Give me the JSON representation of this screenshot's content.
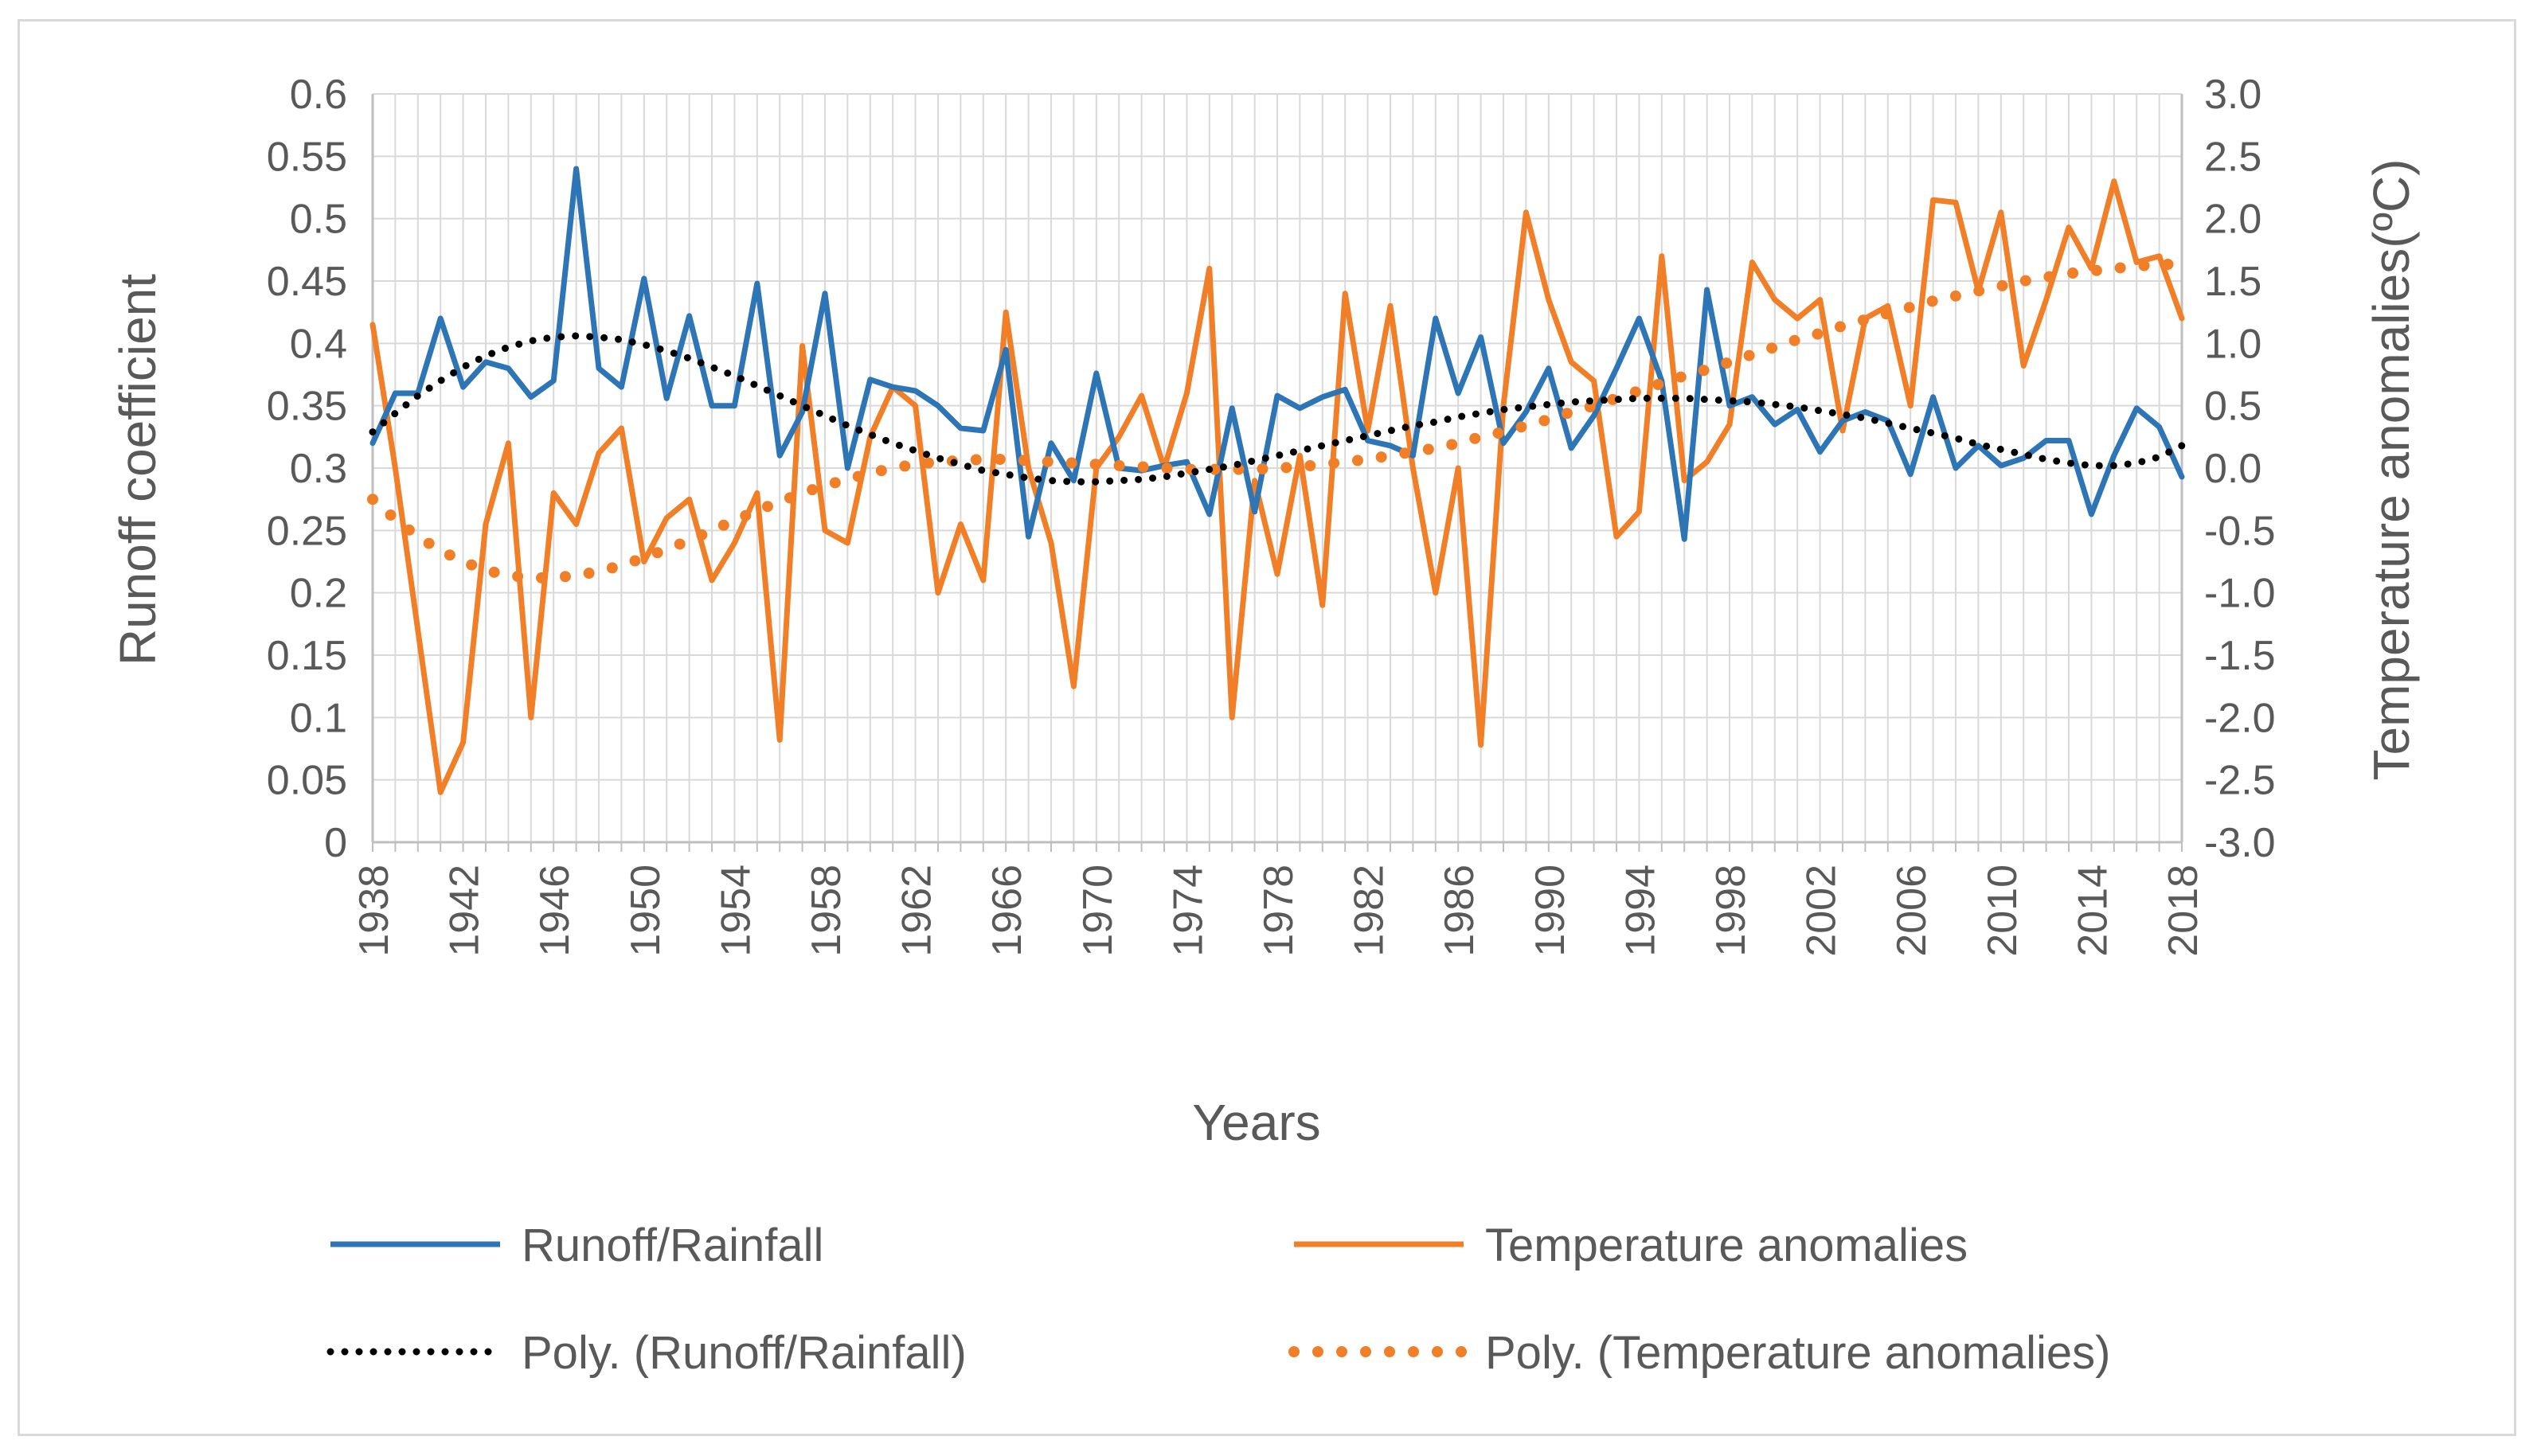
{
  "chart_data": {
    "type": "line",
    "title": "",
    "xlabel": "Years",
    "ylabel": "Runoff coefficient",
    "y2label": "Temperature anomalies(ºC)",
    "ylim": [
      0,
      0.6
    ],
    "y2lim": [
      -3.0,
      3.0
    ],
    "xlim": [
      1938,
      2018
    ],
    "x_ticks": [
      "1938",
      "1942",
      "1946",
      "1950",
      "1954",
      "1958",
      "1962",
      "1966",
      "1970",
      "1974",
      "1978",
      "1982",
      "1986",
      "1990",
      "1994",
      "1998",
      "2002",
      "2006",
      "2010",
      "2014",
      "2018"
    ],
    "y_ticks": [
      "0",
      "0.05",
      "0.1",
      "0.15",
      "0.2",
      "0.25",
      "0.3",
      "0.35",
      "0.4",
      "0.45",
      "0.5",
      "0.55",
      "0.6"
    ],
    "y2_ticks": [
      "-3.0",
      "-2.5",
      "-2.0",
      "-1.5",
      "-1.0",
      "-0.5",
      "0.0",
      "0.5",
      "1.0",
      "1.5",
      "2.0",
      "2.5",
      "3.0"
    ],
    "grid": true,
    "legend_position": "bottom",
    "colors": {
      "runoff": "#2e75b6",
      "temperature": "#f07f27",
      "runoff_trend": "#000000",
      "temperature_trend": "#f07f27",
      "grid": "#d9d9d9",
      "axis": "#bfbfbf"
    },
    "years": [
      1938,
      1939,
      1940,
      1941,
      1942,
      1943,
      1944,
      1945,
      1946,
      1947,
      1948,
      1949,
      1950,
      1951,
      1952,
      1953,
      1954,
      1955,
      1956,
      1957,
      1958,
      1959,
      1960,
      1961,
      1962,
      1963,
      1964,
      1965,
      1966,
      1967,
      1968,
      1969,
      1970,
      1971,
      1972,
      1973,
      1974,
      1975,
      1976,
      1977,
      1978,
      1979,
      1980,
      1981,
      1982,
      1983,
      1984,
      1985,
      1986,
      1987,
      1988,
      1989,
      1990,
      1991,
      1992,
      1993,
      1994,
      1995,
      1996,
      1997,
      1998,
      1999,
      2000,
      2001,
      2002,
      2003,
      2004,
      2005,
      2006,
      2007,
      2008,
      2009,
      2010,
      2011,
      2012,
      2013,
      2014,
      2015,
      2016,
      2017,
      2018
    ],
    "series": [
      {
        "name": "Runoff/Rainfall",
        "axis": "left",
        "style": "solid",
        "values": [
          0.32,
          0.36,
          0.36,
          0.42,
          0.365,
          0.385,
          0.38,
          0.357,
          0.37,
          0.54,
          0.38,
          0.365,
          0.452,
          0.356,
          0.422,
          0.35,
          0.35,
          0.448,
          0.31,
          0.345,
          0.44,
          0.3,
          0.371,
          0.365,
          0.362,
          0.35,
          0.332,
          0.33,
          0.395,
          0.245,
          0.32,
          0.29,
          0.376,
          0.3,
          0.298,
          0.302,
          0.305,
          0.263,
          0.348,
          0.265,
          0.358,
          0.348,
          0.357,
          0.363,
          0.322,
          0.318,
          0.31,
          0.42,
          0.36,
          0.405,
          0.32,
          0.345,
          0.38,
          0.316,
          0.342,
          0.38,
          0.42,
          0.37,
          0.243,
          0.443,
          0.35,
          0.357,
          0.335,
          0.347,
          0.313,
          0.338,
          0.345,
          0.338,
          0.295,
          0.357,
          0.3,
          0.318,
          0.302,
          0.308,
          0.322,
          0.322,
          0.263,
          0.31,
          0.348,
          0.333,
          0.293
        ]
      },
      {
        "name": "Temperature anomalies",
        "axis": "right",
        "style": "solid",
        "values": [
          1.15,
          0.0,
          -1.3,
          -2.6,
          -2.2,
          -0.45,
          0.2,
          -2.0,
          -0.2,
          -0.45,
          0.12,
          0.32,
          -0.75,
          -0.4,
          -0.25,
          -0.9,
          -0.6,
          -0.2,
          -2.18,
          0.98,
          -0.5,
          -0.6,
          0.25,
          0.65,
          0.5,
          -1.0,
          -0.45,
          -0.9,
          1.25,
          0.0,
          -0.6,
          -1.75,
          0.0,
          0.25,
          0.58,
          0.0,
          0.6,
          1.6,
          -2.0,
          -0.1,
          -0.85,
          0.1,
          -1.1,
          1.4,
          0.3,
          1.3,
          0.0,
          -1.0,
          0.0,
          -2.22,
          0.5,
          2.05,
          1.35,
          0.85,
          0.7,
          -0.55,
          -0.35,
          1.7,
          -0.1,
          0.05,
          0.35,
          1.65,
          1.35,
          1.2,
          1.35,
          0.3,
          1.2,
          1.3,
          0.5,
          2.15,
          2.13,
          1.42,
          2.05,
          0.82,
          1.35,
          1.93,
          1.6,
          2.3,
          1.65,
          1.7,
          1.2
        ]
      },
      {
        "name": "Poly. (Runoff/Rainfall)",
        "axis": "left",
        "style": "dotted",
        "values": [
          0.329,
          0.344,
          0.358,
          0.37,
          0.381,
          0.39,
          0.397,
          0.402,
          0.405,
          0.406,
          0.405,
          0.403,
          0.399,
          0.394,
          0.388,
          0.381,
          0.374,
          0.366,
          0.358,
          0.35,
          0.342,
          0.334,
          0.327,
          0.32,
          0.314,
          0.308,
          0.303,
          0.298,
          0.295,
          0.292,
          0.29,
          0.289,
          0.289,
          0.29,
          0.291,
          0.293,
          0.296,
          0.299,
          0.302,
          0.306,
          0.31,
          0.314,
          0.318,
          0.322,
          0.326,
          0.33,
          0.334,
          0.337,
          0.341,
          0.344,
          0.347,
          0.349,
          0.351,
          0.353,
          0.354,
          0.355,
          0.356,
          0.356,
          0.356,
          0.355,
          0.354,
          0.353,
          0.351,
          0.349,
          0.346,
          0.343,
          0.34,
          0.336,
          0.332,
          0.328,
          0.324,
          0.319,
          0.315,
          0.311,
          0.307,
          0.304,
          0.302,
          0.302,
          0.304,
          0.309,
          0.318
        ]
      },
      {
        "name": "Poly. (Temperature anomalies)",
        "axis": "right",
        "style": "dotted",
        "values": [
          -0.25,
          -0.41,
          -0.55,
          -0.66,
          -0.75,
          -0.82,
          -0.86,
          -0.88,
          -0.88,
          -0.86,
          -0.83,
          -0.78,
          -0.72,
          -0.65,
          -0.58,
          -0.5,
          -0.42,
          -0.34,
          -0.27,
          -0.2,
          -0.14,
          -0.09,
          -0.04,
          0.0,
          0.03,
          0.05,
          0.06,
          0.07,
          0.07,
          0.06,
          0.05,
          0.04,
          0.03,
          0.02,
          0.01,
          0.0,
          -0.01,
          -0.01,
          -0.01,
          -0.01,
          0.0,
          0.01,
          0.03,
          0.05,
          0.07,
          0.1,
          0.13,
          0.16,
          0.2,
          0.25,
          0.29,
          0.34,
          0.39,
          0.45,
          0.5,
          0.56,
          0.62,
          0.68,
          0.74,
          0.79,
          0.85,
          0.91,
          0.97,
          1.03,
          1.08,
          1.14,
          1.19,
          1.24,
          1.29,
          1.34,
          1.38,
          1.42,
          1.46,
          1.5,
          1.53,
          1.56,
          1.58,
          1.6,
          1.62,
          1.63,
          1.64
        ]
      }
    ]
  }
}
